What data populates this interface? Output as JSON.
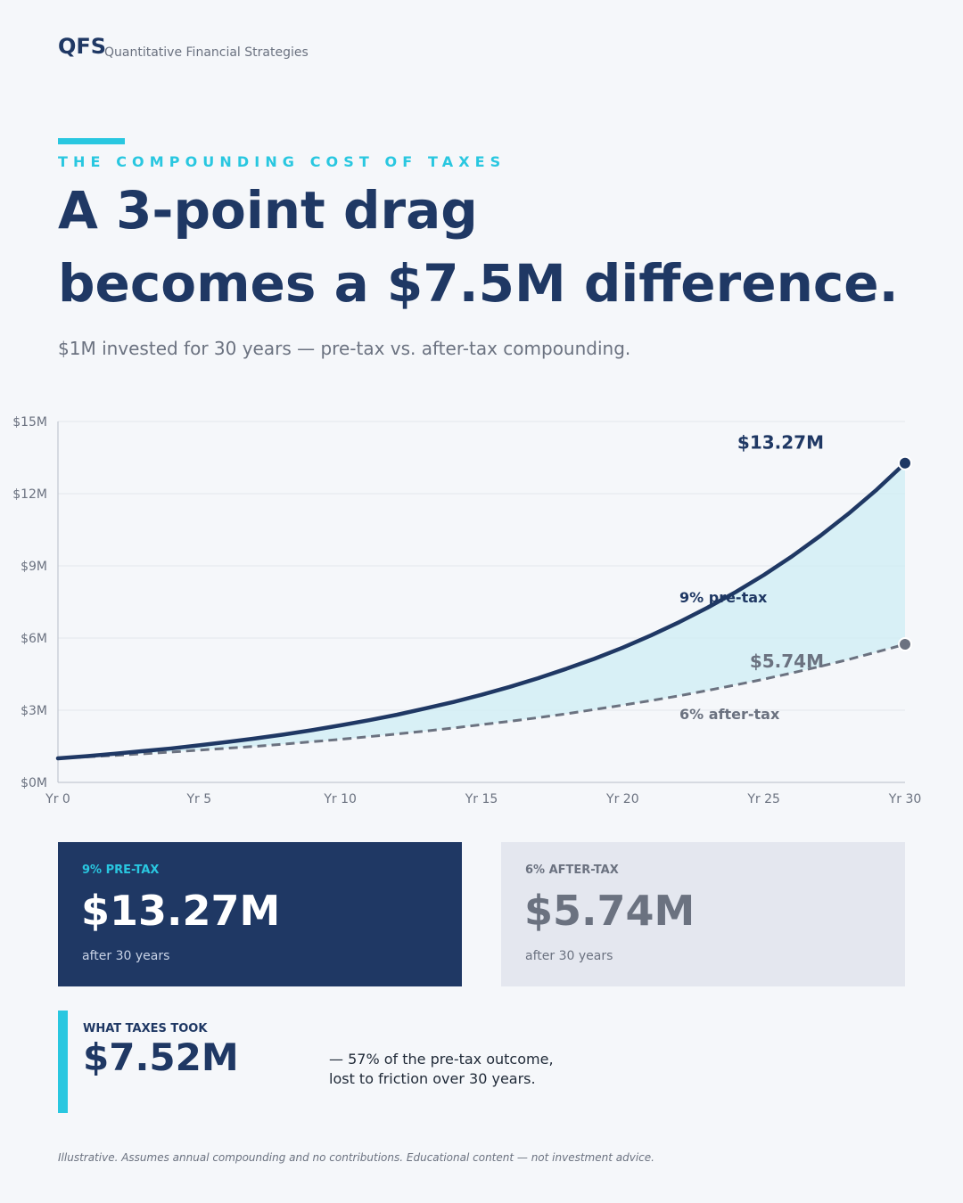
{
  "brand": {
    "logo": "QFS",
    "tagline": "Quantitative Financial Strategies"
  },
  "eyebrow": "THE COMPOUNDING COST OF TAXES",
  "headline": {
    "line1": "A 3-point drag",
    "line2": "becomes a $7.5M difference."
  },
  "subtitle": "$1M invested for 30 years — pre-tax vs. after-tax compounding.",
  "colors": {
    "navy": "#1f3864",
    "cyan": "#29c7e0",
    "gray": "#6b7280",
    "fill": "#cdeef4"
  },
  "chart_data": {
    "type": "line",
    "x": [
      0,
      1,
      2,
      3,
      4,
      5,
      6,
      7,
      8,
      9,
      10,
      11,
      12,
      13,
      14,
      15,
      16,
      17,
      18,
      19,
      20,
      21,
      22,
      23,
      24,
      25,
      26,
      27,
      28,
      29,
      30
    ],
    "x_ticks": [
      "Yr 0",
      "Yr 5",
      "Yr 10",
      "Yr 15",
      "Yr 20",
      "Yr 25",
      "Yr 30"
    ],
    "x_tick_values": [
      0,
      5,
      10,
      15,
      20,
      25,
      30
    ],
    "y_ticks": [
      "$0M",
      "$3M",
      "$6M",
      "$9M",
      "$12M",
      "$15M"
    ],
    "y_tick_values": [
      0,
      3,
      6,
      9,
      12,
      15
    ],
    "ylim": [
      0,
      15
    ],
    "xlim": [
      0,
      30
    ],
    "grid": true,
    "series": [
      {
        "name": "9% pre-tax",
        "rate": 0.09,
        "style": "solid",
        "end_label": "$13.27M",
        "values": [
          1.0,
          1.09,
          1.19,
          1.3,
          1.41,
          1.54,
          1.68,
          1.83,
          1.99,
          2.17,
          2.37,
          2.58,
          2.81,
          3.07,
          3.34,
          3.64,
          3.97,
          4.33,
          4.72,
          5.14,
          5.6,
          6.11,
          6.66,
          7.26,
          7.91,
          8.62,
          9.4,
          10.25,
          11.17,
          12.17,
          13.27
        ]
      },
      {
        "name": "6% after-tax",
        "rate": 0.06,
        "style": "dashed",
        "end_label": "$5.74M",
        "values": [
          1.0,
          1.06,
          1.12,
          1.19,
          1.26,
          1.34,
          1.42,
          1.5,
          1.59,
          1.69,
          1.79,
          1.9,
          2.01,
          2.13,
          2.26,
          2.4,
          2.54,
          2.69,
          2.85,
          3.03,
          3.21,
          3.4,
          3.6,
          3.82,
          4.05,
          4.29,
          4.55,
          4.82,
          5.11,
          5.42,
          5.74
        ]
      }
    ]
  },
  "cards": {
    "pretax": {
      "label": "9% PRE-TAX",
      "value": "$13.27M",
      "note": "after 30 years"
    },
    "aftertax": {
      "label": "6% AFTER-TAX",
      "value": "$5.74M",
      "note": "after 30 years"
    }
  },
  "taxes": {
    "label": "WHAT TAXES TOOK",
    "value": "$7.52M",
    "desc_line1": "— 57% of the pre-tax outcome,",
    "desc_line2": "lost to friction over 30 years."
  },
  "footnote": "Illustrative. Assumes annual compounding and no contributions. Educational content — not investment advice."
}
